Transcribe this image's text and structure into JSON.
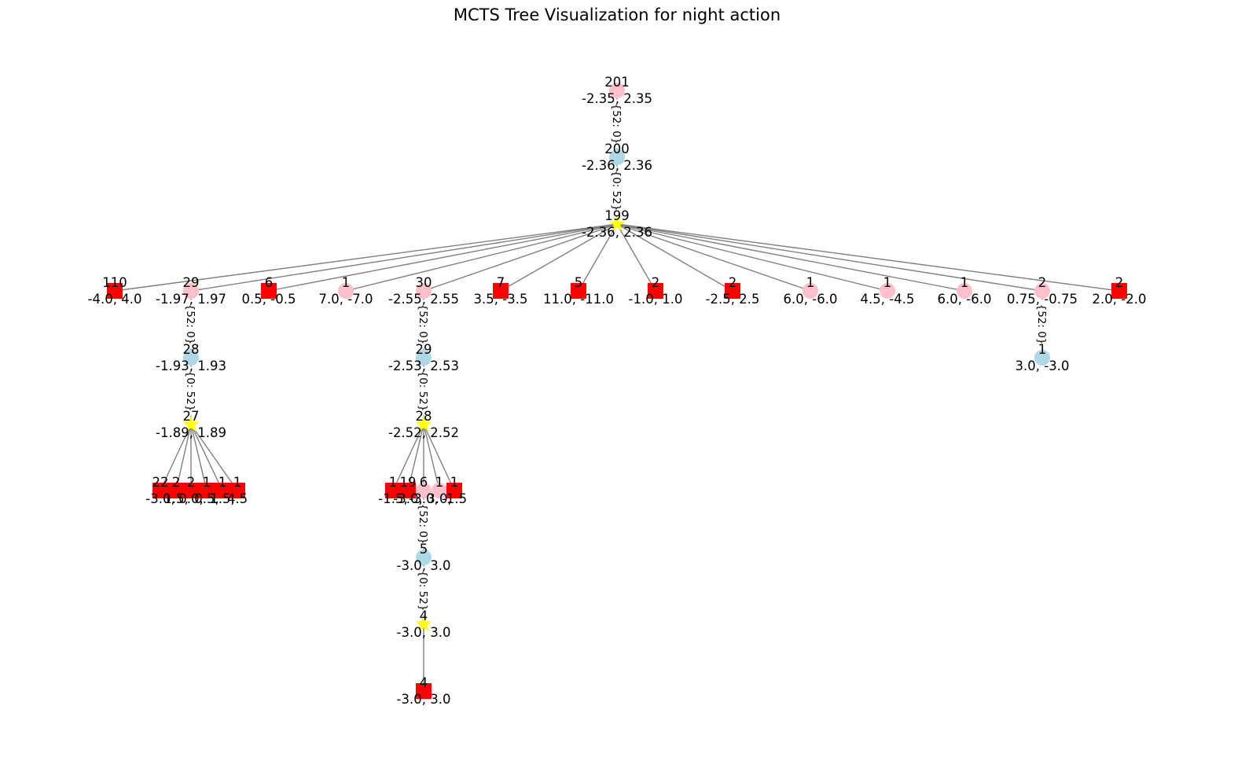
{
  "title": "MCTS Tree Visualization for night action",
  "colors": {
    "pink": "#ffc0cb",
    "blue": "#add8e6",
    "yellow": "#ffff00",
    "red": "#ff0000",
    "edge": "#808080"
  },
  "legend_shapes": {
    "circle": "circle",
    "star": "star",
    "square": "square"
  },
  "nodes": [
    {
      "id": "n0",
      "shape": "circle",
      "color": "pink",
      "visits": "201",
      "value": "-2.35, 2.35"
    },
    {
      "id": "n1",
      "shape": "circle",
      "color": "blue",
      "visits": "200",
      "value": "-2.36, 2.36"
    },
    {
      "id": "n2",
      "shape": "star",
      "color": "yellow",
      "visits": "199",
      "value": "-2.36, 2.36"
    },
    {
      "id": "n3",
      "shape": "square",
      "color": "red",
      "visits": "110",
      "value": "-4.0, 4.0"
    },
    {
      "id": "n4",
      "shape": "circle",
      "color": "pink",
      "visits": "29",
      "value": "-1.97, 1.97"
    },
    {
      "id": "n5",
      "shape": "square",
      "color": "red",
      "visits": "6",
      "value": "0.5, -0.5"
    },
    {
      "id": "n6",
      "shape": "circle",
      "color": "pink",
      "visits": "1",
      "value": "7.0, -7.0"
    },
    {
      "id": "n7",
      "shape": "circle",
      "color": "pink",
      "visits": "30",
      "value": "-2.55, 2.55"
    },
    {
      "id": "n8",
      "shape": "square",
      "color": "red",
      "visits": "7",
      "value": "3.5, -3.5"
    },
    {
      "id": "n9",
      "shape": "square",
      "color": "red",
      "visits": "5",
      "value": "11.0, -11.0"
    },
    {
      "id": "n10",
      "shape": "square",
      "color": "red",
      "visits": "2",
      "value": "-1.0, 1.0"
    },
    {
      "id": "n11",
      "shape": "square",
      "color": "red",
      "visits": "2",
      "value": "-2.5, 2.5"
    },
    {
      "id": "n12",
      "shape": "circle",
      "color": "pink",
      "visits": "1",
      "value": "6.0, -6.0"
    },
    {
      "id": "n13",
      "shape": "circle",
      "color": "pink",
      "visits": "1",
      "value": "4.5, -4.5"
    },
    {
      "id": "n14",
      "shape": "circle",
      "color": "pink",
      "visits": "1",
      "value": "6.0, -6.0"
    },
    {
      "id": "n15",
      "shape": "circle",
      "color": "pink",
      "visits": "2",
      "value": "0.75, -0.75"
    },
    {
      "id": "n16",
      "shape": "square",
      "color": "red",
      "visits": "2",
      "value": "2.0, -2.0"
    },
    {
      "id": "n17",
      "shape": "circle",
      "color": "blue",
      "visits": "28",
      "value": "-1.93, 1.93"
    },
    {
      "id": "n18",
      "shape": "star",
      "color": "yellow",
      "visits": "27",
      "value": "-1.89, 1.89"
    },
    {
      "id": "n19",
      "shape": "circle",
      "color": "blue",
      "visits": "29",
      "value": "-2.53, 2.53"
    },
    {
      "id": "n20",
      "shape": "star",
      "color": "yellow",
      "visits": "28",
      "value": "-2.52, 2.52"
    },
    {
      "id": "n21",
      "shape": "circle",
      "color": "blue",
      "visits": "1",
      "value": "3.0, -3.0"
    },
    {
      "id": "n22",
      "shape": "square",
      "color": "red",
      "visits": "22",
      "value": "-3.0,"
    },
    {
      "id": "n23",
      "shape": "square",
      "color": "red",
      "visits": "2",
      "value": "1.5,"
    },
    {
      "id": "n24",
      "shape": "square",
      "color": "red",
      "visits": "2",
      "value": "0.0,"
    },
    {
      "id": "n25",
      "shape": "square",
      "color": "red",
      "visits": "1",
      "value": "0.5,"
    },
    {
      "id": "n26",
      "shape": "square",
      "color": "red",
      "visits": "1",
      "value": "1.5,"
    },
    {
      "id": "n27",
      "shape": "square",
      "color": "red",
      "visits": "1",
      "value": "4.5"
    },
    {
      "id": "n28",
      "shape": "square",
      "color": "red",
      "visits": "1",
      "value": "-1.5,"
    },
    {
      "id": "n29",
      "shape": "square",
      "color": "red",
      "visits": "19",
      "value": "-3.0,"
    },
    {
      "id": "n30",
      "shape": "circle",
      "color": "pink",
      "visits": "6",
      "value": "-3.0,"
    },
    {
      "id": "n31",
      "shape": "circle",
      "color": "pink",
      "visits": "1",
      "value": "3.0,"
    },
    {
      "id": "n32",
      "shape": "square",
      "color": "red",
      "visits": "1",
      "value": "-1.5"
    },
    {
      "id": "n33",
      "shape": "circle",
      "color": "blue",
      "visits": "5",
      "value": "-3.0, 3.0"
    },
    {
      "id": "n34",
      "shape": "star",
      "color": "yellow",
      "visits": "4",
      "value": "-3.0, 3.0"
    },
    {
      "id": "n35",
      "shape": "square",
      "color": "red",
      "visits": "4",
      "value": "-3.0, 3.0"
    }
  ],
  "edges": [
    {
      "from": "n0",
      "to": "n1",
      "label": "{52: 0}"
    },
    {
      "from": "n1",
      "to": "n2",
      "label": "{0: 52}"
    },
    {
      "from": "n2",
      "to": "n3"
    },
    {
      "from": "n2",
      "to": "n4"
    },
    {
      "from": "n2",
      "to": "n5"
    },
    {
      "from": "n2",
      "to": "n6"
    },
    {
      "from": "n2",
      "to": "n7"
    },
    {
      "from": "n2",
      "to": "n8"
    },
    {
      "from": "n2",
      "to": "n9"
    },
    {
      "from": "n2",
      "to": "n10"
    },
    {
      "from": "n2",
      "to": "n11"
    },
    {
      "from": "n2",
      "to": "n12"
    },
    {
      "from": "n2",
      "to": "n13"
    },
    {
      "from": "n2",
      "to": "n14"
    },
    {
      "from": "n2",
      "to": "n15"
    },
    {
      "from": "n2",
      "to": "n16"
    },
    {
      "from": "n4",
      "to": "n17",
      "label": "{52: 0}"
    },
    {
      "from": "n17",
      "to": "n18",
      "label": "{0: 52}"
    },
    {
      "from": "n18",
      "to": "n22"
    },
    {
      "from": "n18",
      "to": "n23"
    },
    {
      "from": "n18",
      "to": "n24"
    },
    {
      "from": "n18",
      "to": "n25"
    },
    {
      "from": "n18",
      "to": "n26"
    },
    {
      "from": "n18",
      "to": "n27"
    },
    {
      "from": "n7",
      "to": "n19",
      "label": "{52: 0}"
    },
    {
      "from": "n19",
      "to": "n20",
      "label": "{0: 52}"
    },
    {
      "from": "n20",
      "to": "n28"
    },
    {
      "from": "n20",
      "to": "n29"
    },
    {
      "from": "n20",
      "to": "n30"
    },
    {
      "from": "n20",
      "to": "n31"
    },
    {
      "from": "n20",
      "to": "n32"
    },
    {
      "from": "n30",
      "to": "n33",
      "label": "{52: 0}"
    },
    {
      "from": "n33",
      "to": "n34",
      "label": "{0: 52}"
    },
    {
      "from": "n34",
      "to": "n35"
    },
    {
      "from": "n15",
      "to": "n21",
      "label": "{52: 0}"
    }
  ]
}
